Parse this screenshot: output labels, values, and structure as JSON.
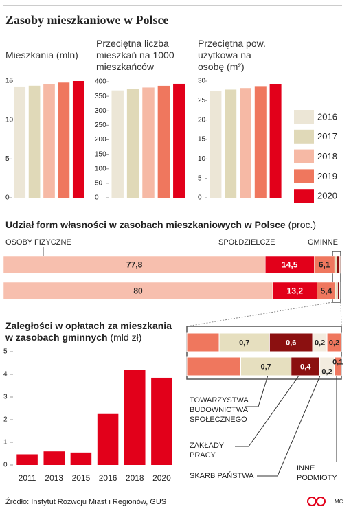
{
  "title": "Zasoby mieszkaniowe w Polsce",
  "source": "Źródło: Instytut Rozwoju Miast i Regionów, GUS",
  "author": "MC",
  "chart_data": [
    {
      "type": "bar",
      "title": "Mieszkania (mln)",
      "categories": [
        "2016",
        "2017",
        "2018",
        "2019",
        "2020"
      ],
      "values": [
        14.3,
        14.4,
        14.6,
        14.8,
        15.0
      ],
      "colors": [
        "#ece6d6",
        "#e0d9b8",
        "#f6b9a5",
        "#ef775e",
        "#e2001a"
      ],
      "ylim": [
        0,
        15
      ],
      "yticks": [
        0,
        5,
        10,
        15
      ],
      "legend": true
    },
    {
      "type": "bar",
      "title": "Przeciętna liczba mieszkań na 1000 mieszkańców",
      "categories": [
        "2016",
        "2017",
        "2018",
        "2019",
        "2020"
      ],
      "values": [
        370,
        374,
        380,
        386,
        393
      ],
      "colors": [
        "#ece6d6",
        "#e0d9b8",
        "#f6b9a5",
        "#ef775e",
        "#e2001a"
      ],
      "ylim": [
        0,
        400
      ],
      "yticks": [
        0,
        50,
        100,
        150,
        200,
        250,
        300,
        350,
        400
      ]
    },
    {
      "type": "bar",
      "title": "Przeciętna pow. użytkowa na osobę (m²)",
      "categories": [
        "2016",
        "2017",
        "2018",
        "2019",
        "2020"
      ],
      "values": [
        27.4,
        27.8,
        28.2,
        28.7,
        29.2
      ],
      "colors": [
        "#ece6d6",
        "#e0d9b8",
        "#f6b9a5",
        "#ef775e",
        "#e2001a"
      ],
      "ylim": [
        0,
        30
      ],
      "yticks": [
        0,
        5,
        10,
        15,
        20,
        25,
        30
      ]
    },
    {
      "type": "stacked-bar",
      "orientation": "horizontal",
      "title": "Udział form własności w zasobach mieszkaniowych w Polsce",
      "unit": "(proc.)",
      "categories": [
        null,
        null
      ],
      "xlim": [
        0,
        100
      ],
      "series": [
        {
          "name": "OSOBY FIZYCZNE",
          "color": "#f7bfae",
          "values": [
            77.8,
            80
          ],
          "value_labels": [
            "77,8",
            "80"
          ]
        },
        {
          "name": "SPÓŁDZIELCZE",
          "color": "#e2001a",
          "values": [
            14.5,
            13.2
          ],
          "value_labels": [
            "14,5",
            "13,2"
          ]
        },
        {
          "name": "GMINNE",
          "color": "#ef775e",
          "values": [
            6.1,
            5.4
          ],
          "value_labels": [
            "6,1",
            "5,4"
          ]
        },
        {
          "name": "TOWARZYSTWA BUDOWNICTWA SPOŁECZNEGO",
          "color": "#e6dfbf",
          "values": [
            0.7,
            0.7
          ],
          "value_labels": [
            "0,7",
            "0,7"
          ]
        },
        {
          "name": "ZAKŁADY PRACY",
          "color": "#8b1010",
          "values": [
            0.6,
            0.4
          ],
          "value_labels": [
            "0,6",
            "0,4"
          ]
        },
        {
          "name": "SKARB PAŃSTWA",
          "color": "#f3ecdf",
          "values": [
            0.2,
            0.2
          ],
          "value_labels": [
            "0,2",
            "0,2"
          ]
        },
        {
          "name": "INNE PODMIOTY",
          "color": "#ef775e",
          "values": [
            0.2,
            0.1
          ],
          "value_labels": [
            "0,2",
            "0,1"
          ]
        }
      ]
    },
    {
      "type": "bar",
      "title": "Zaległości w opłatach za mieszkania w zasobach gminnych",
      "unit": "(mld zł)",
      "categories": [
        "2011",
        "2013",
        "2015",
        "2016",
        "2018",
        "2020"
      ],
      "values": [
        0.47,
        0.6,
        0.55,
        2.25,
        4.2,
        3.85
      ],
      "color": "#e2001a",
      "ylim": [
        0,
        5
      ],
      "yticks": [
        0,
        1,
        2,
        3,
        4,
        5
      ]
    }
  ]
}
